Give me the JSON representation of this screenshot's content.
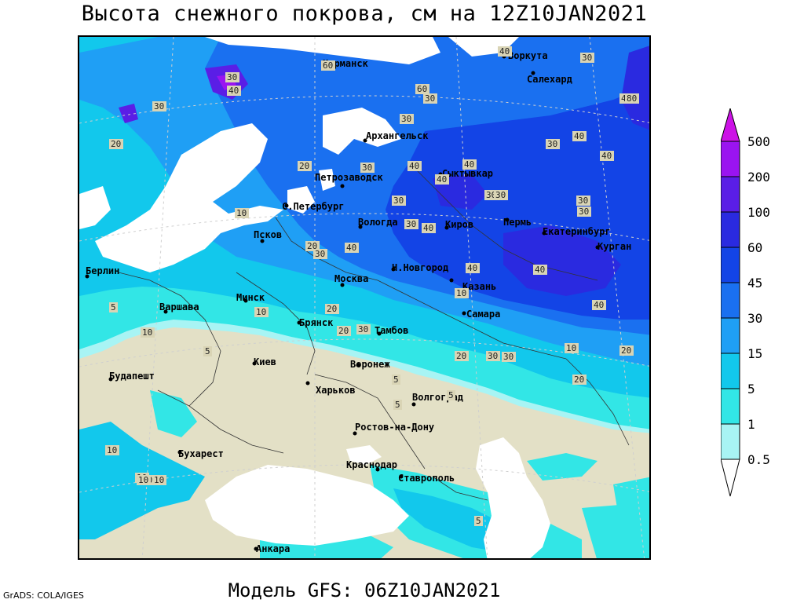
{
  "title": "Высота снежного покрова, см на 12Z10JAN2021",
  "subtitle": "Модель GFS: 06Z10JAN2021",
  "credit": "GrADS: COLA/IGES",
  "colors": {
    "land": "#e3e0c6",
    "water": "#ffffff",
    "c05": "#a8f4f4",
    "c1": "#32e6e6",
    "c5": "#12c8ec",
    "c15": "#1f9ff5",
    "c30": "#1a70f0",
    "c45": "#1344e6",
    "c60": "#2a2ae0",
    "c100": "#5a1ee6",
    "c200": "#9a14f0",
    "c500": "#cc12e6"
  },
  "legend": {
    "levels": [
      "500",
      "200",
      "100",
      "60",
      "45",
      "30",
      "15",
      "5",
      "1",
      "0.5"
    ]
  },
  "cities": [
    {
      "name": "Мурманск"
    },
    {
      "name": "Воркута"
    },
    {
      "name": "Салехард"
    },
    {
      "name": "Архангельск"
    },
    {
      "name": "Петрозаводск"
    },
    {
      "name": "Сыктывкар"
    },
    {
      "name": "С.Петербург"
    },
    {
      "name": "Вологда"
    },
    {
      "name": "Киров"
    },
    {
      "name": "Пермь"
    },
    {
      "name": "Екатеринбург"
    },
    {
      "name": "Курган"
    },
    {
      "name": "Псков"
    },
    {
      "name": "Берлин"
    },
    {
      "name": "Н.Новгород"
    },
    {
      "name": "Москва"
    },
    {
      "name": "Казань"
    },
    {
      "name": "Варшава"
    },
    {
      "name": "Минск"
    },
    {
      "name": "Самара"
    },
    {
      "name": "Брянск"
    },
    {
      "name": "Тамбов"
    },
    {
      "name": "Киев"
    },
    {
      "name": "Воронеж"
    },
    {
      "name": "Будапешт"
    },
    {
      "name": "Харьков"
    },
    {
      "name": "Волгоград"
    },
    {
      "name": "Ростов-на-Дону"
    },
    {
      "name": "Бухарест"
    },
    {
      "name": "Краснодар"
    },
    {
      "name": "Ставрополь"
    },
    {
      "name": "Анкара"
    }
  ],
  "contour_labels": [
    "30",
    "40",
    "60",
    "40",
    "30",
    "40",
    "60",
    "80",
    "30",
    "20",
    "30",
    "30",
    "40",
    "30",
    "20",
    "30",
    "40",
    "40",
    "40",
    "30",
    "40",
    "30",
    "10",
    "30",
    "30",
    "40",
    "40",
    "30",
    "30",
    "20",
    "30",
    "40",
    "40",
    "10",
    "10",
    "20",
    "5",
    "10",
    "20",
    "30",
    "40",
    "30",
    "20",
    "10",
    "5",
    "20",
    "10",
    "5",
    "10",
    "10",
    "10",
    "5",
    "5",
    "10",
    "20",
    "30",
    "5"
  ]
}
